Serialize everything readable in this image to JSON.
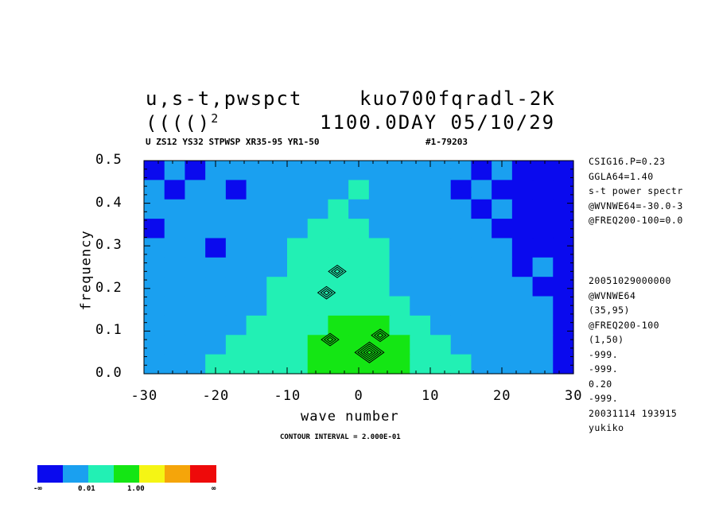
{
  "header": {
    "title_left": "u,s-t,pwspct",
    "title_right": "kuo700fqradl-2K",
    "subtitle_left": "(((()",
    "subtitle_sup": "2",
    "subtitle_right": "1100.0DAY 05/10/29",
    "info_line": "U ZS12 YS32 STPWSP XR35-95 YR1-50",
    "info_id": "#1-79203"
  },
  "side_info": {
    "block1": [
      "CSIG16.P=0.23",
      "GGLA64=1.40",
      "s-t power spectr",
      "@WVNWE64=-30.0-3",
      "@FREQ200-100=0.0"
    ],
    "block2": [
      "20051029000000",
      "@WVNWE64",
      "(35,95)",
      "@FREQ200-100",
      "(1,50)",
      "-999.",
      "-999.",
      "0.20",
      "-999.",
      "20031114 193915",
      "yukiko"
    ]
  },
  "footer": {
    "contour_interval": "CONTOUR INTERVAL = 2.000E-01"
  },
  "colorbar": {
    "colors": [
      "#0a0aee",
      "#1aa0f0",
      "#22f0b4",
      "#14e614",
      "#f5f514",
      "#f5a50a",
      "#ee0a0a"
    ],
    "labels": [
      "-∞",
      "0.01",
      "1.00",
      "∞"
    ]
  },
  "chart_data": {
    "type": "heatmap",
    "title": "u,s-t,pwspct",
    "xlabel": "wave number",
    "ylabel": "frequency",
    "xlim": [
      -30,
      30
    ],
    "ylim": [
      0.0,
      0.5
    ],
    "xticks": [
      "-30",
      "-20",
      "-10",
      "0",
      "10",
      "20",
      "30"
    ],
    "yticks": [
      "0.0",
      "0.1",
      "0.2",
      "0.3",
      "0.4",
      "0.5"
    ],
    "levels": [
      "< 0.01 (dark blue)",
      "0.01-1.00 (light blue / cyan)",
      ">= 1.00 (green)"
    ],
    "x": [
      -30,
      -27,
      -24,
      -21,
      -18,
      -15,
      -12,
      -9,
      -6,
      -3,
      0,
      3,
      6,
      9,
      12,
      15,
      18,
      21,
      24,
      27,
      30
    ],
    "y": [
      0.5,
      0.45,
      0.4,
      0.35,
      0.3,
      0.25,
      0.2,
      0.15,
      0.1,
      0.05,
      0.0
    ],
    "z": [
      [
        0,
        1,
        0,
        1,
        1,
        1,
        1,
        1,
        1,
        1,
        1,
        1,
        1,
        1,
        1,
        1,
        0,
        1,
        0,
        0,
        0
      ],
      [
        1,
        0,
        1,
        1,
        0,
        1,
        1,
        1,
        1,
        1,
        2,
        1,
        1,
        1,
        1,
        0,
        1,
        0,
        0,
        0,
        0
      ],
      [
        1,
        1,
        1,
        1,
        1,
        1,
        1,
        1,
        1,
        2,
        1,
        1,
        1,
        1,
        1,
        1,
        0,
        1,
        0,
        0,
        0
      ],
      [
        0,
        1,
        1,
        1,
        1,
        1,
        1,
        1,
        2,
        2,
        2,
        1,
        1,
        1,
        1,
        1,
        1,
        0,
        0,
        0,
        0
      ],
      [
        1,
        1,
        1,
        0,
        1,
        1,
        1,
        2,
        2,
        2,
        2,
        2,
        1,
        1,
        1,
        1,
        1,
        1,
        0,
        0,
        0
      ],
      [
        1,
        1,
        1,
        1,
        1,
        1,
        1,
        2,
        2,
        2,
        2,
        2,
        1,
        1,
        1,
        1,
        1,
        1,
        0,
        1,
        0
      ],
      [
        1,
        1,
        1,
        1,
        1,
        1,
        2,
        2,
        2,
        2,
        2,
        2,
        1,
        1,
        1,
        1,
        1,
        1,
        1,
        0,
        0
      ],
      [
        1,
        1,
        1,
        1,
        1,
        1,
        2,
        2,
        2,
        2,
        2,
        2,
        2,
        1,
        1,
        1,
        1,
        1,
        1,
        1,
        0
      ],
      [
        1,
        1,
        1,
        1,
        1,
        2,
        2,
        2,
        2,
        3,
        3,
        3,
        2,
        2,
        1,
        1,
        1,
        1,
        1,
        1,
        0
      ],
      [
        1,
        1,
        1,
        1,
        2,
        2,
        2,
        2,
        3,
        3,
        3,
        3,
        3,
        2,
        2,
        1,
        1,
        1,
        1,
        1,
        0
      ],
      [
        1,
        1,
        1,
        2,
        2,
        2,
        2,
        2,
        3,
        3,
        3,
        3,
        3,
        2,
        2,
        2,
        1,
        1,
        1,
        1,
        0
      ]
    ],
    "contour_peaks": [
      [
        -4.5,
        0.19
      ],
      [
        -4,
        0.08
      ],
      [
        1.5,
        0.05
      ],
      [
        3,
        0.09
      ],
      [
        -3,
        0.24
      ]
    ]
  }
}
